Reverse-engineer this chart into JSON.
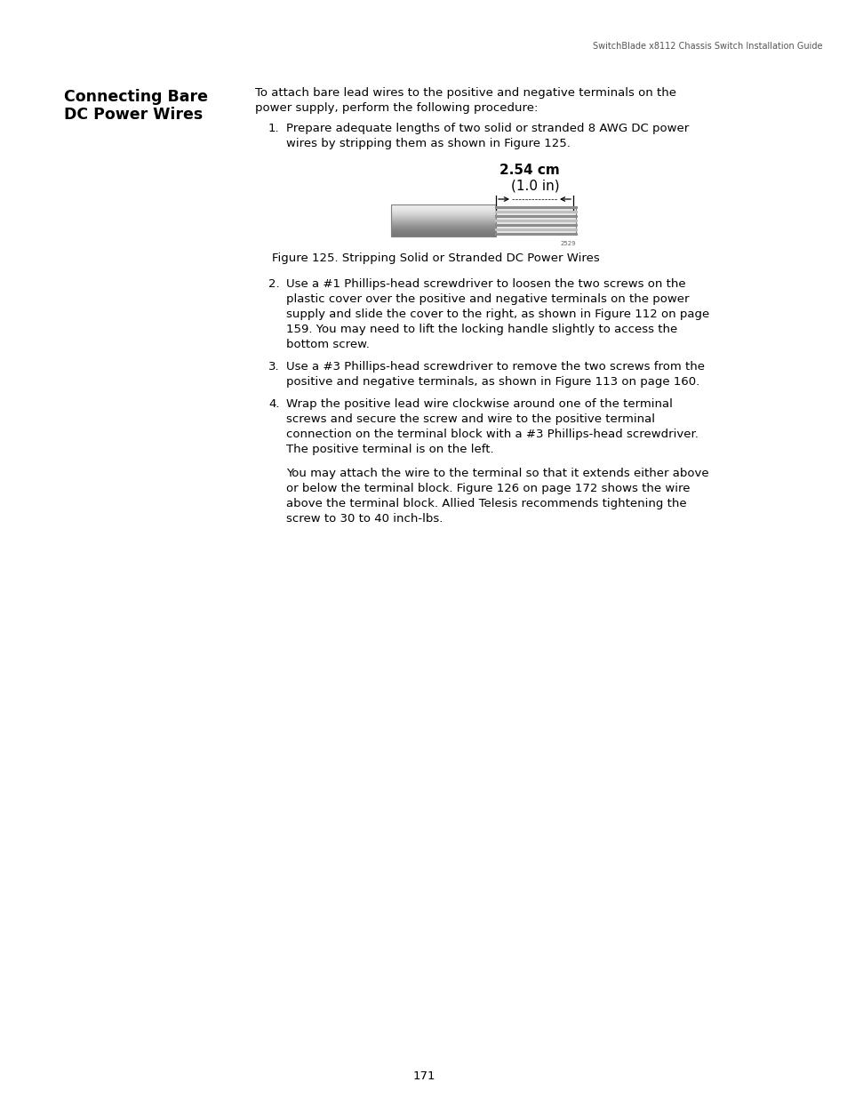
{
  "header_text": "SwitchBlade x8112 Chassis Switch Installation Guide",
  "section_title_line1": "Connecting Bare",
  "section_title_line2": "DC Power Wires",
  "intro_text": "To attach bare lead wires to the positive and negative terminals on the\npower supply, perform the following procedure:",
  "item1": "Prepare adequate lengths of two solid or stranded 8 AWG DC power\nwires by stripping them as shown in Figure 125.",
  "figure_label_top": "2.54 cm",
  "figure_label_bottom": "(1.0 in)",
  "figure_caption": "Figure 125. Stripping Solid or Stranded DC Power Wires",
  "item2": "Use a #1 Phillips-head screwdriver to loosen the two screws on the\nplastic cover over the positive and negative terminals on the power\nsupply and slide the cover to the right, as shown in Figure 112 on page\n159. You may need to lift the locking handle slightly to access the\nbottom screw.",
  "item3": "Use a #3 Phillips-head screwdriver to remove the two screws from the\npositive and negative terminals, as shown in Figure 113 on page 160.",
  "item4": "Wrap the positive lead wire clockwise around one of the terminal\nscrews and secure the screw and wire to the positive terminal\nconnection on the terminal block with a #3 Phillips-head screwdriver.\nThe positive terminal is on the left.",
  "item4_extra": "You may attach the wire to the terminal so that it extends either above\nor below the terminal block. Figure 126 on page 172 shows the wire\nabove the terminal block. Allied Telesis recommends tightening the\nscrew to 30 to 40 inch-lbs.",
  "page_number": "171",
  "bg_color": "#ffffff",
  "text_color": "#000000"
}
